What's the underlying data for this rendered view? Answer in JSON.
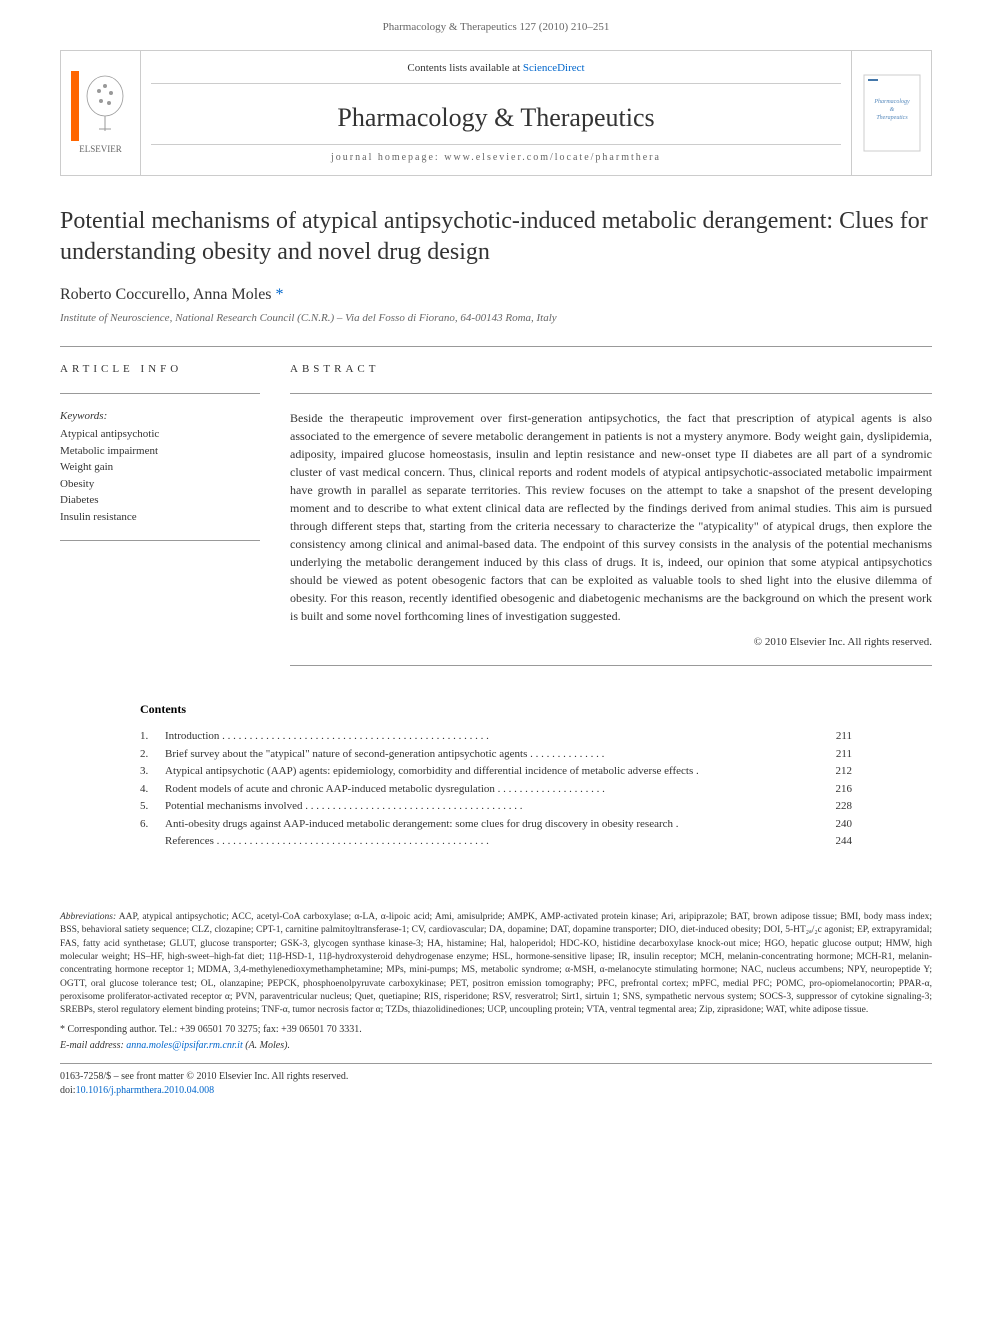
{
  "running_header": "Pharmacology & Therapeutics 127 (2010) 210–251",
  "masthead": {
    "contents_prefix": "Contents lists available at ",
    "contents_link": "ScienceDirect",
    "journal_name": "Pharmacology & Therapeutics",
    "homepage_prefix": "journal homepage: ",
    "homepage_url": "www.elsevier.com/locate/pharmthera",
    "publisher": "ELSEVIER",
    "cover_text_1": "Pharmacology",
    "cover_text_2": "&",
    "cover_text_3": "Therapeutics"
  },
  "title": "Potential mechanisms of atypical antipsychotic-induced metabolic derangement: Clues for understanding obesity and novel drug design",
  "authors": "Roberto Coccurello, Anna Moles ",
  "author_marker": "*",
  "affiliation": "Institute of Neuroscience, National Research Council (C.N.R.) – Via del Fosso di Fiorano, 64-00143 Roma, Italy",
  "article_info_label": "ARTICLE INFO",
  "keywords_label": "Keywords:",
  "keywords": [
    "Atypical antipsychotic",
    "Metabolic impairment",
    "Weight gain",
    "Obesity",
    "Diabetes",
    "Insulin resistance"
  ],
  "abstract_label": "ABSTRACT",
  "abstract_text": "Beside the therapeutic improvement over first-generation antipsychotics, the fact that prescription of atypical agents is also associated to the emergence of severe metabolic derangement in patients is not a mystery anymore. Body weight gain, dyslipidemia, adiposity, impaired glucose homeostasis, insulin and leptin resistance and new-onset type II diabetes are all part of a syndromic cluster of vast medical concern. Thus, clinical reports and rodent models of atypical antipsychotic-associated metabolic impairment have growth in parallel as separate territories. This review focuses on the attempt to take a snapshot of the present developing moment and to describe to what extent clinical data are reflected by the findings derived from animal studies. This aim is pursued through different steps that, starting from the criteria necessary to characterize the \"atypicality\" of atypical drugs, then explore the consistency among clinical and animal-based data. The endpoint of this survey consists in the analysis of the potential mechanisms underlying the metabolic derangement induced by this class of drugs. It is, indeed, our opinion that some atypical antipsychotics should be viewed as potent obesogenic factors that can be exploited as valuable tools to shed light into the elusive dilemma of obesity. For this reason, recently identified obesogenic and diabetogenic mechanisms are the background on which the present work is built and some novel forthcoming lines of investigation suggested.",
  "copyright": "© 2010 Elsevier Inc. All rights reserved.",
  "contents_heading": "Contents",
  "contents": [
    {
      "num": "1.",
      "title": "Introduction",
      "page": "211"
    },
    {
      "num": "2.",
      "title": "Brief survey about the \"atypical\" nature of second-generation antipsychotic agents",
      "page": "211"
    },
    {
      "num": "3.",
      "title": "Atypical antipsychotic (AAP) agents: epidemiology, comorbidity and differential incidence of metabolic adverse effects",
      "page": "212"
    },
    {
      "num": "4.",
      "title": "Rodent models of acute and chronic AAP-induced metabolic dysregulation",
      "page": "216"
    },
    {
      "num": "5.",
      "title": "Potential mechanisms involved",
      "page": "228"
    },
    {
      "num": "6.",
      "title": "Anti-obesity drugs against AAP-induced metabolic derangement: some clues for drug discovery in obesity research",
      "page": "240"
    },
    {
      "num": "",
      "title": "References",
      "page": "244"
    }
  ],
  "abbreviations_label": "Abbreviations:",
  "abbreviations": " AAP, atypical antipsychotic; ACC, acetyl-CoA carboxylase; α-LA, α-lipoic acid; Ami, amisulpride; AMPK, AMP-activated protein kinase; Ari, aripiprazole; BAT, brown adipose tissue; BMI, body mass index; BSS, behavioral satiety sequence; CLZ, clozapine; CPT-1, carnitine palmitoyltransferase-1; CV, cardiovascular; DA, dopamine; DAT, dopamine transporter; DIO, diet-induced obesity; DOI, 5-HT₂ₐ/₂c agonist; EP, extrapyramidal; FAS, fatty acid synthetase; GLUT, glucose transporter; GSK-3, glycogen synthase kinase-3; HA, histamine; Hal, haloperidol; HDC-KO, histidine decarboxylase knock-out mice; HGO, hepatic glucose output; HMW, high molecular weight; HS–HF, high-sweet–high-fat diet; 11β-HSD-1, 11β-hydroxysteroid dehydrogenase enzyme; HSL, hormone-sensitive lipase; IR, insulin receptor; MCH, melanin-concentrating hormone; MCH-R1, melanin-concentrating hormone receptor 1; MDMA, 3,4-methylenedioxymethamphetamine; MPs, mini-pumps; MS, metabolic syndrome; α-MSH, α-melanocyte stimulating hormone; NAC, nucleus accumbens; NPY, neuropeptide Y; OGTT, oral glucose tolerance test; OL, olanzapine; PEPCK, phosphoenolpyruvate carboxykinase; PET, positron emission tomography; PFC, prefrontal cortex; mPFC, medial PFC; POMC, pro-opiomelanocortin; PPAR-α, peroxisome proliferator-activated receptor α; PVN, paraventricular nucleus; Quet, quetiapine; RIS, risperidone; RSV, resveratrol; Sirt1, sirtuin 1; SNS, sympathetic nervous system; SOCS-3, suppressor of cytokine signaling-3; SREBPs, sterol regulatory element binding proteins; TNF-α, tumor necrosis factor α; TZDs, thiazolidinediones; UCP, uncoupling protein; VTA, ventral tegmental area; Zip, ziprasidone; WAT, white adipose tissue.",
  "corresponding": "* Corresponding author. Tel.: +39 06501 70 3275; fax: +39 06501 70 3331.",
  "email_label": "E-mail address: ",
  "email": "anna.moles@ipsifar.rm.cnr.it",
  "email_suffix": " (A. Moles).",
  "footer_line1": "0163-7258/$ – see front matter © 2010 Elsevier Inc. All rights reserved.",
  "footer_doi_prefix": "doi:",
  "footer_doi": "10.1016/j.pharmthera.2010.04.008",
  "colors": {
    "link": "#0066cc",
    "text": "#333333",
    "border": "#cccccc",
    "elsevier_orange": "#ff6600"
  }
}
